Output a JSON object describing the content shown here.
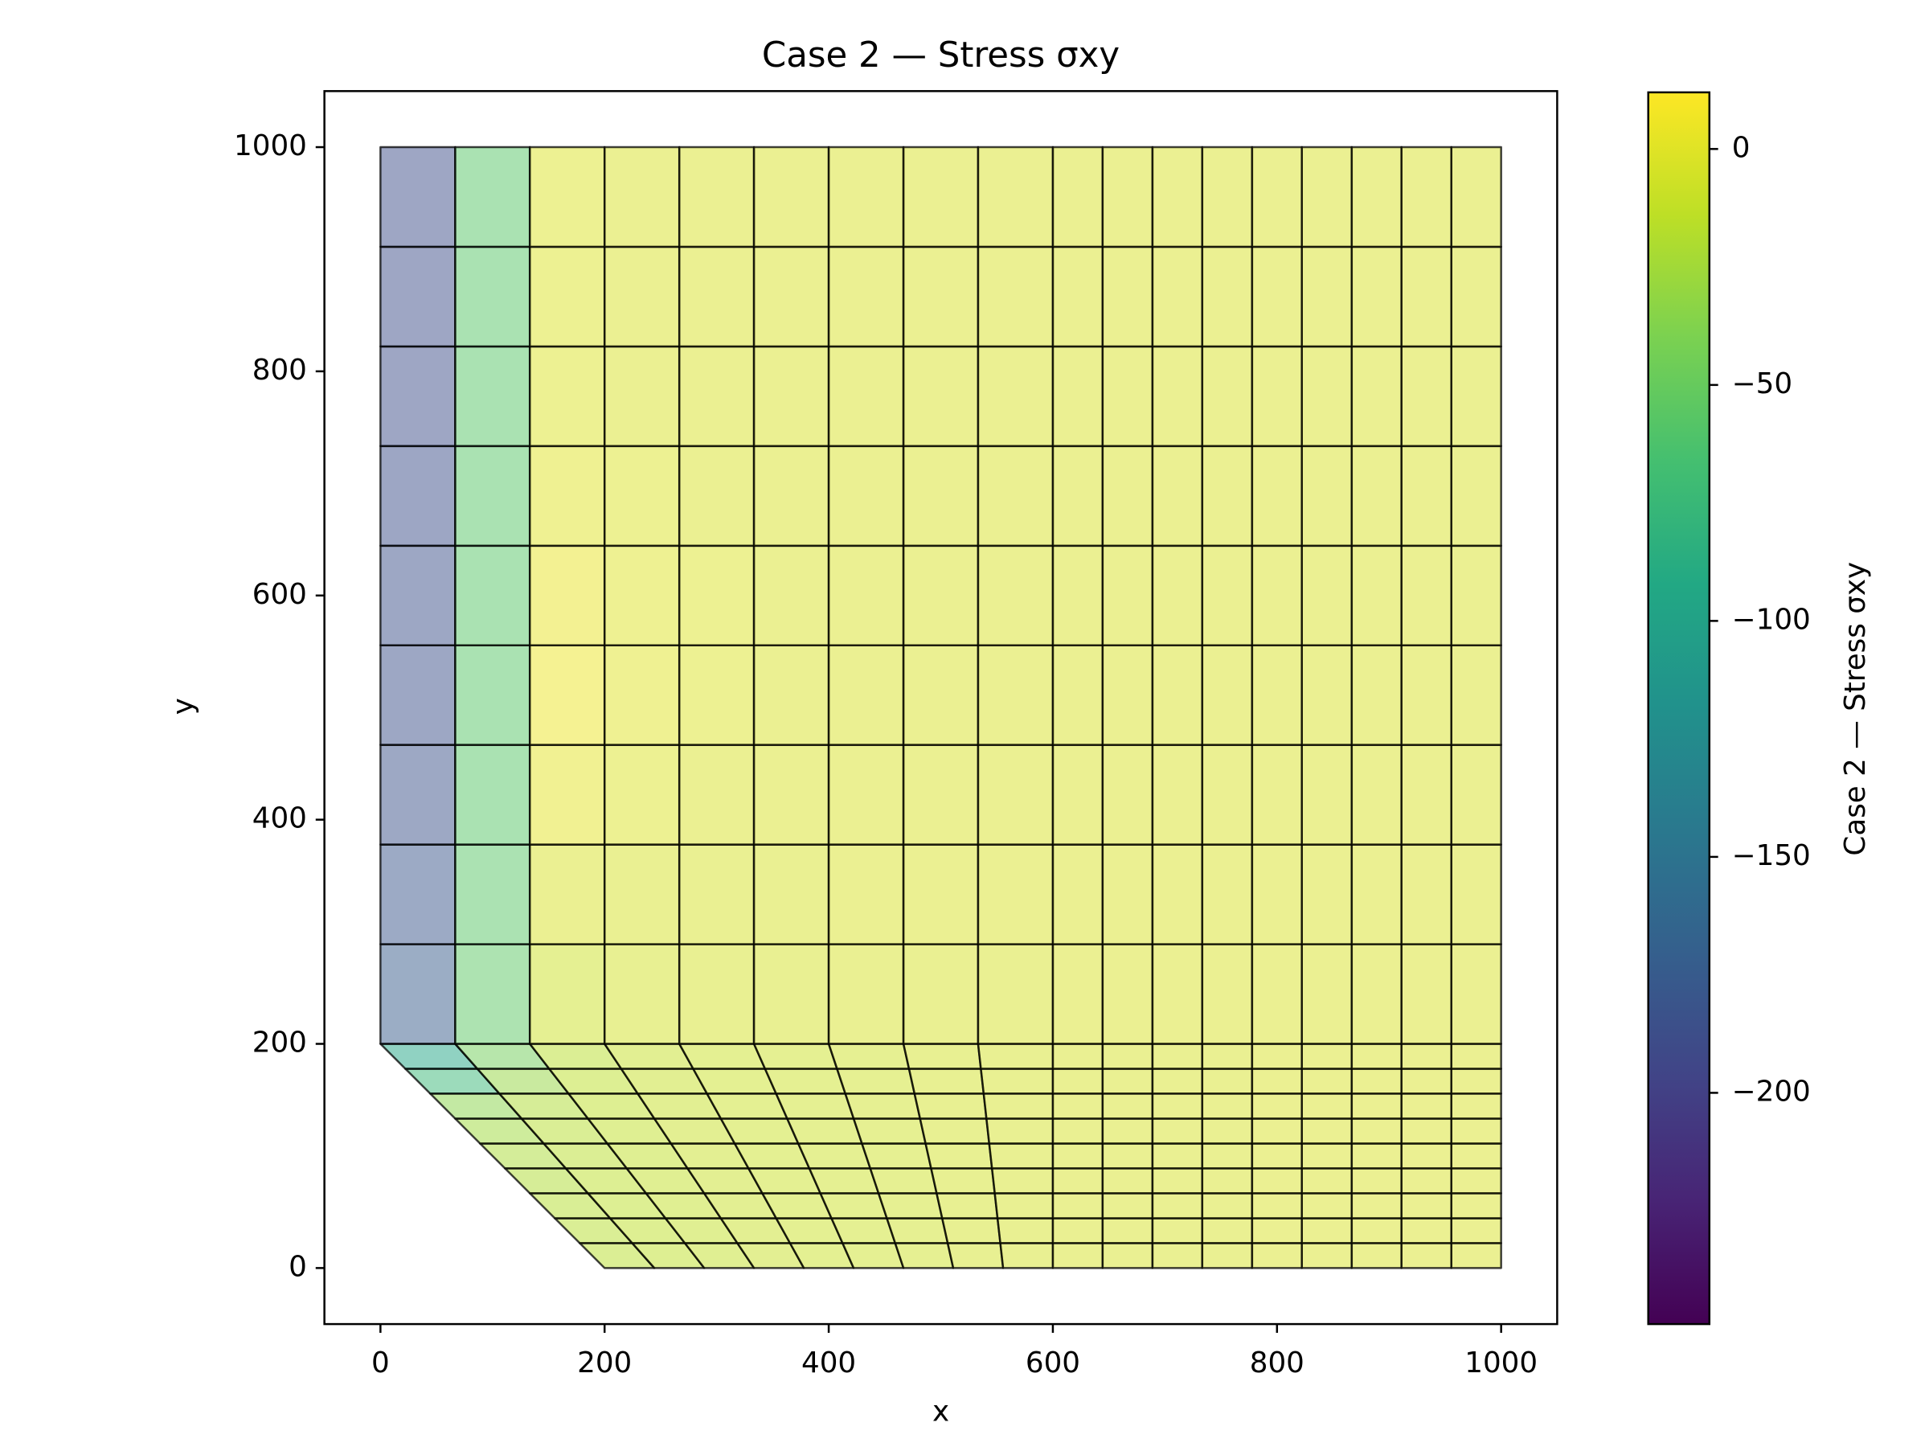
{
  "chart_data": {
    "type": "mesh",
    "title": "Case  2 — Stress σxy",
    "x_label": "x",
    "y_label": "y",
    "colorbar_label": "Case  2 — Stress σxy",
    "xlim": [
      -50,
      1050
    ],
    "ylim": [
      -50,
      1050
    ],
    "xticks": [
      0,
      200,
      400,
      600,
      800,
      1000
    ],
    "yticks": [
      0,
      200,
      400,
      600,
      800,
      1000
    ],
    "clim": [
      -249,
      12
    ],
    "cticks": [
      {
        "value": 0,
        "label": "0"
      },
      {
        "value": -50,
        "label": "−50"
      },
      {
        "value": -100,
        "label": "−100"
      },
      {
        "value": -150,
        "label": "−150"
      },
      {
        "value": -200,
        "label": "−200"
      }
    ],
    "colormap": [
      "#440154",
      "#482475",
      "#414487",
      "#355f8d",
      "#2a788e",
      "#21918c",
      "#22a884",
      "#44bf70",
      "#7ad151",
      "#bddf26",
      "#fde725"
    ],
    "alpha": 0.5,
    "edge_color": "#000000",
    "x_nodes_top": [
      0,
      66.7,
      133.3,
      200,
      266.7,
      333.3,
      400,
      466.7,
      533.3,
      600,
      644.4,
      688.9,
      733.3,
      777.8,
      822.2,
      866.7,
      911.1,
      955.6,
      1000
    ],
    "x_nodes_bottom": [
      200,
      244.4,
      288.9,
      333.3,
      377.8,
      422.2,
      466.7,
      511.1,
      555.6,
      600,
      644.4,
      688.9,
      733.3,
      777.8,
      822.2,
      866.7,
      911.1,
      955.6,
      1000
    ],
    "y_nodes": [
      0,
      22.2,
      44.4,
      66.7,
      88.9,
      111.1,
      133.3,
      155.6,
      177.8,
      200,
      288.9,
      377.8,
      466.7,
      555.6,
      644.4,
      733.3,
      822.2,
      911.1,
      1000
    ],
    "values": [
      [
        -16,
        -14,
        -12,
        -10,
        -9,
        -8,
        -7,
        -6,
        -5,
        -4,
        -4,
        -4,
        -4,
        -3,
        -3,
        -3,
        -3,
        -3
      ],
      [
        -17,
        -14,
        -12,
        -10,
        -9,
        -8,
        -7,
        -6,
        -5,
        -4,
        -4,
        -4,
        -4,
        -3,
        -3,
        -3,
        -3,
        -3
      ],
      [
        -18,
        -15,
        -12,
        -10,
        -9,
        -8,
        -7,
        -6,
        -5,
        -4,
        -4,
        -4,
        -4,
        -3,
        -3,
        -3,
        -3,
        -3
      ],
      [
        -20,
        -15,
        -12,
        -10,
        -9,
        -8,
        -7,
        -6,
        -5,
        -4,
        -4,
        -4,
        -4,
        -3,
        -3,
        -3,
        -3,
        -3
      ],
      [
        -22,
        -16,
        -13,
        -10,
        -9,
        -8,
        -7,
        -6,
        -5,
        -4,
        -4,
        -4,
        -4,
        -3,
        -3,
        -3,
        -3,
        -3
      ],
      [
        -26,
        -17,
        -13,
        -10,
        -9,
        -8,
        -7,
        -6,
        -5,
        -4,
        -4,
        -4,
        -4,
        -3,
        -3,
        -3,
        -3,
        -3
      ],
      [
        -35,
        -20,
        -14,
        -11,
        -9,
        -8,
        -7,
        -6,
        -5,
        -4,
        -4,
        -4,
        -4,
        -3,
        -3,
        -3,
        -3,
        -3
      ],
      [
        -75,
        -30,
        -15,
        -11,
        -9,
        -8,
        -7,
        -6,
        -5,
        -4,
        -4,
        -4,
        -4,
        -3,
        -3,
        -3,
        -3,
        -3
      ],
      [
        -95,
        -45,
        -16,
        -11,
        -9,
        -8,
        -7,
        -6,
        -5,
        -4,
        -4,
        -4,
        -4,
        -3,
        -3,
        -3,
        -3,
        -3
      ],
      [
        -175,
        -55,
        -8,
        -6,
        -5,
        -5,
        -4,
        -4,
        -4,
        -3,
        -3,
        -3,
        -3,
        -3,
        -3,
        -3,
        -3,
        -3
      ],
      [
        -180,
        -57,
        -3,
        -4,
        -4,
        -4,
        -3,
        -3,
        -3,
        -3,
        -3,
        -3,
        -3,
        -3,
        -3,
        -3,
        -3,
        -3
      ],
      [
        -183,
        -58,
        2,
        -2,
        -3,
        -3,
        -3,
        -3,
        -3,
        -3,
        -3,
        -3,
        -3,
        -3,
        -3,
        -3,
        -3,
        -3
      ],
      [
        -185,
        -58,
        5,
        0,
        -2,
        -3,
        -3,
        -3,
        -3,
        -3,
        -3,
        -3,
        -3,
        -3,
        -3,
        -3,
        -3,
        -3
      ],
      [
        -186,
        -58,
        3,
        -1,
        -2,
        -3,
        -3,
        -3,
        -3,
        -3,
        -3,
        -3,
        -3,
        -3,
        -3,
        -3,
        -3,
        -3
      ],
      [
        -187,
        -58,
        0,
        -2,
        -3,
        -3,
        -3,
        -3,
        -3,
        -3,
        -3,
        -3,
        -3,
        -3,
        -3,
        -3,
        -3,
        -3
      ],
      [
        -188,
        -58,
        -2,
        -3,
        -3,
        -3,
        -3,
        -3,
        -3,
        -3,
        -3,
        -3,
        -3,
        -3,
        -3,
        -3,
        -3,
        -3
      ],
      [
        -188,
        -58,
        -2,
        -3,
        -3,
        -3,
        -3,
        -3,
        -3,
        -3,
        -3,
        -3,
        -3,
        -3,
        -3,
        -3,
        -3,
        -3
      ],
      [
        -188,
        -58,
        -2,
        -3,
        -3,
        -3,
        -3,
        -3,
        -3,
        -3,
        -3,
        -3,
        -3,
        -3,
        -3,
        -3,
        -3,
        -3
      ]
    ]
  }
}
